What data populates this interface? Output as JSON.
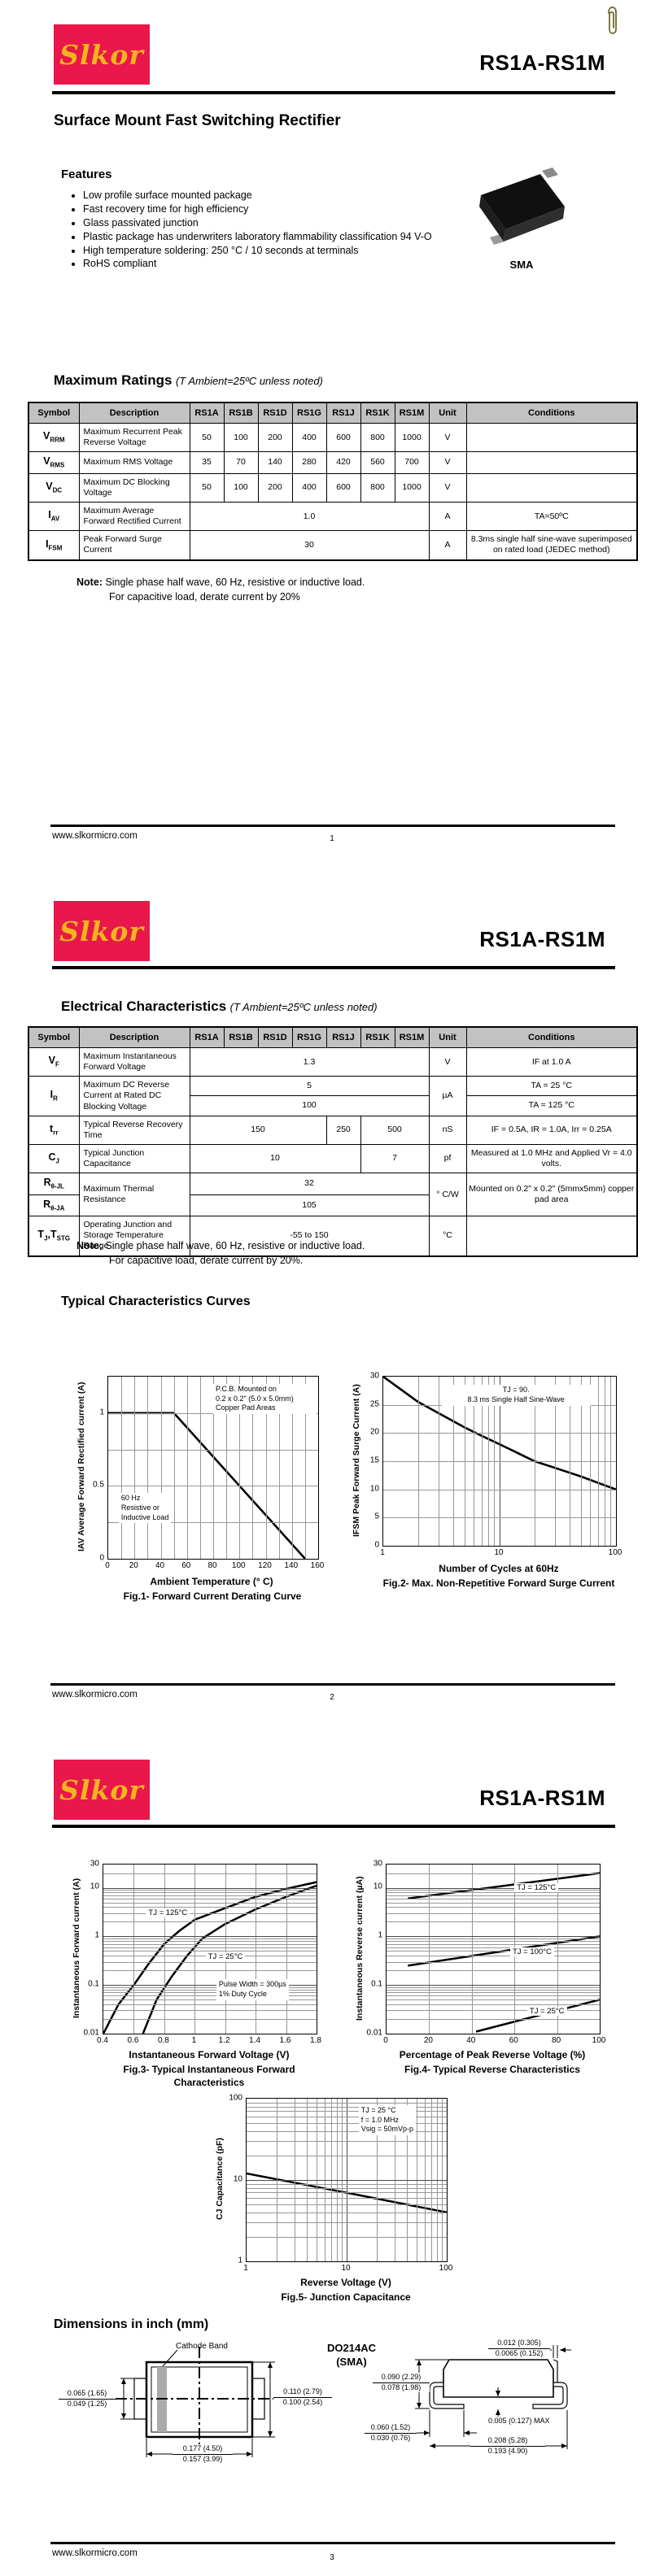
{
  "header": {
    "logo_text": "Slkor",
    "part": "RS1A-RS1M"
  },
  "footer": {
    "site": "www.slkormicro.com",
    "page1": "1",
    "page2": "2",
    "page3": "3"
  },
  "page1": {
    "doc_title": "Surface Mount Fast Switching Rectifier",
    "features_title": "Features",
    "features": [
      "Low profile surface mounted package",
      "Fast recovery time for high efficiency",
      "Glass passivated junction",
      "Plastic package has underwriters laboratory flammability classification 94 V-O",
      "High temperature soldering: 250 °C / 10 seconds at terminals",
      "RoHS compliant"
    ],
    "package_label": "SMA",
    "ratings_title": "Maximum Ratings",
    "ratings_cond": "(T Ambient=25ºC unless noted)",
    "note_label": "Note:",
    "note1": "Single phase half wave, 60 Hz, resistive or inductive load.",
    "note2": "For capacitive load, derate current by 20%",
    "table": {
      "header": [
        "Symbol",
        "Description",
        "RS1A",
        "RS1B",
        "RS1D",
        "RS1G",
        "RS1J",
        "RS1K",
        "RS1M",
        "Unit",
        "Conditions"
      ],
      "rows": [
        [
          {
            "t": "V",
            "sub": "RRM",
            "cls": "sym"
          },
          {
            "t": "Maximum Recurrent Peak Reverse Voltage",
            "cls": "desc"
          },
          {
            "t": "50"
          },
          {
            "t": "100"
          },
          {
            "t": "200"
          },
          {
            "t": "400"
          },
          {
            "t": "600"
          },
          {
            "t": "800"
          },
          {
            "t": "1000"
          },
          {
            "t": "V"
          },
          {
            "t": ""
          }
        ],
        [
          {
            "t": "V",
            "sub": "RMS",
            "cls": "sym"
          },
          {
            "t": "Maximum RMS Voltage",
            "cls": "desc"
          },
          {
            "t": "35"
          },
          {
            "t": "70"
          },
          {
            "t": "140"
          },
          {
            "t": "280"
          },
          {
            "t": "420"
          },
          {
            "t": "560"
          },
          {
            "t": "700"
          },
          {
            "t": "V"
          },
          {
            "t": ""
          }
        ],
        [
          {
            "t": "V",
            "sub": "DC",
            "cls": "sym"
          },
          {
            "t": "Maximum DC Blocking Voltage",
            "cls": "desc"
          },
          {
            "t": "50"
          },
          {
            "t": "100"
          },
          {
            "t": "200"
          },
          {
            "t": "400"
          },
          {
            "t": "600"
          },
          {
            "t": "800"
          },
          {
            "t": "1000"
          },
          {
            "t": "V"
          },
          {
            "t": ""
          }
        ],
        [
          {
            "t": "I",
            "sub": "AV",
            "cls": "sym"
          },
          {
            "t": "Maximum Average Forward Rectified Current",
            "cls": "desc"
          },
          {
            "t": "1.0",
            "c": 7
          },
          {
            "t": "A"
          },
          {
            "t": "TA=50ºC"
          }
        ],
        [
          {
            "t": "I",
            "sub": "FSM",
            "cls": "sym"
          },
          {
            "t": "Peak Forward Surge Current",
            "cls": "desc"
          },
          {
            "t": "30",
            "c": 7
          },
          {
            "t": "A"
          },
          {
            "t": "8.3ms single half sine-wave superimposed on rated load (JEDEC method)"
          }
        ]
      ]
    }
  },
  "page2": {
    "elec_title": "Electrical Characteristics",
    "elec_cond": "(T Ambient=25ºC unless noted)",
    "note_label": "Note:",
    "note1": "Single phase half wave, 60 Hz, resistive or inductive load.",
    "note2": "For capacitive load, derate current by 20%.",
    "curves_title": "Typical Characteristics Curves",
    "table": {
      "header": [
        "Symbol",
        "Description",
        "RS1A",
        "RS1B",
        "RS1D",
        "RS1G",
        "RS1J",
        "RS1K",
        "RS1M",
        "Unit",
        "Conditions"
      ],
      "rows": [
        [
          {
            "t": "V",
            "sub": "F",
            "cls": "sym"
          },
          {
            "t": "Maximum Instantaneous Forward Voltage",
            "cls": "desc"
          },
          {
            "t": "1.3",
            "c": 7
          },
          {
            "t": "V"
          },
          {
            "t": "IF at 1.0 A"
          }
        ],
        [
          {
            "t": "I",
            "sub": "R",
            "cls": "sym",
            "r": 2
          },
          {
            "t": "Maximum DC Reverse Current at Rated DC Blocking Voltage",
            "cls": "desc",
            "r": 2
          },
          {
            "t": "5",
            "c": 7
          },
          {
            "t": "µA",
            "r": 2
          },
          {
            "t": "TA = 25 °C"
          }
        ],
        [
          {
            "t": "100",
            "c": 7
          },
          {
            "t": "TA = 125 °C"
          }
        ],
        [
          {
            "t": "t",
            "sub": "rr",
            "cls": "sym"
          },
          {
            "t": "Typical Reverse Recovery Time",
            "cls": "desc"
          },
          {
            "t": "150",
            "c": 4
          },
          {
            "t": "250"
          },
          {
            "t": "500",
            "c": 2
          },
          {
            "t": "nS"
          },
          {
            "t": "IF = 0.5A, IR = 1.0A, Irr = 0.25A"
          }
        ],
        [
          {
            "t": "C",
            "sub": "J",
            "cls": "sym"
          },
          {
            "t": "Typical Junction Capacitance",
            "cls": "desc"
          },
          {
            "t": "10",
            "c": 5
          },
          {
            "t": "7",
            "c": 2
          },
          {
            "t": "pf"
          },
          {
            "t": "Measured at 1.0 MHz and Applied Vr = 4.0 volts."
          }
        ],
        [
          {
            "parts": [
              {
                "t": "R"
              },
              {
                "s": "θ-JL"
              }
            ],
            "cls": "sym"
          },
          {
            "t": "Maximum Thermal Resistance",
            "cls": "desc",
            "r": 2
          },
          {
            "t": "32",
            "c": 7
          },
          {
            "t": "° C/W",
            "r": 2
          },
          {
            "t": "Mounted on 0.2\" x 0.2\" (5mmx5mm) copper pad area",
            "r": 2
          }
        ],
        [
          {
            "parts": [
              {
                "t": "R"
              },
              {
                "s": "θ-JA"
              }
            ],
            "cls": "sym"
          },
          {
            "t": "105",
            "c": 7
          }
        ],
        [
          {
            "parts": [
              {
                "t": "T"
              },
              {
                "s": "J"
              },
              {
                "t": ",T"
              },
              {
                "s": "STG"
              }
            ],
            "cls": "sym"
          },
          {
            "t": "Operating Junction and Storage Temperature Range",
            "cls": "desc"
          },
          {
            "t": "-55 to 150",
            "c": 7
          },
          {
            "t": "°C"
          },
          {
            "t": ""
          }
        ]
      ]
    },
    "fig1": {
      "ylabel": "IAV Average Forward Rectified current (A)",
      "xlabel": "Ambient Temperature (° C)",
      "caption": "Fig.1- Forward Current Derating Curve",
      "ann_pcb": [
        "P.C.B. Mounted on",
        "0.2 x 0.2\" (5.0 x 5.0mm)",
        "Copper Pad Areas"
      ],
      "ann_load": [
        "60 Hz",
        "Resistive or",
        "Inductive Load"
      ],
      "xticks": [
        {
          "v": "0",
          "p": 0
        },
        {
          "v": "20",
          "p": 12.5
        },
        {
          "v": "40",
          "p": 25
        },
        {
          "v": "60",
          "p": 37.5
        },
        {
          "v": "80",
          "p": 50
        },
        {
          "v": "100",
          "p": 62.5
        },
        {
          "v": "120",
          "p": 75
        },
        {
          "v": "140",
          "p": 87.5
        },
        {
          "v": "160",
          "p": 100
        }
      ],
      "yticks": [
        {
          "v": "1",
          "p": 20
        },
        {
          "v": "0.5",
          "p": 60
        },
        {
          "v": "0",
          "p": 100
        }
      ]
    },
    "fig2": {
      "ylabel": "IFSM Peak Forward Surge Current (A)",
      "xlabel": "Number of Cycles at 60Hz",
      "caption": "Fig.2- Max. Non-Repetitive Forward Surge Current",
      "ann": [
        "TJ = 90.",
        "8.3 ms Single Half Sine-Wave"
      ],
      "xticks": [
        {
          "v": "1",
          "p": 0
        },
        {
          "v": "10",
          "p": 50
        },
        {
          "v": "100",
          "p": 100
        }
      ],
      "yticks": [
        {
          "v": "30",
          "p": 0
        },
        {
          "v": "25",
          "p": 16.7
        },
        {
          "v": "20",
          "p": 33.3
        },
        {
          "v": "15",
          "p": 50
        },
        {
          "v": "10",
          "p": 66.7
        },
        {
          "v": "5",
          "p": 83.3
        },
        {
          "v": "0",
          "p": 100
        }
      ]
    }
  },
  "page3": {
    "fig3": {
      "ylabel": "Instantaneous Forward current (A)",
      "xlabel": "Instantaneous Forward Voltage (V)",
      "caption1": "Fig.3- Typical Instantaneous Forward",
      "caption2": "Characteristics",
      "label_125": "TJ = 125°C",
      "label_25": "TJ = 25°C",
      "ann": [
        "Pulse Width = 300µs",
        "1% Duty Cycle"
      ],
      "xticks": [
        {
          "v": "0.4",
          "p": 0
        },
        {
          "v": "0.6",
          "p": 14.3
        },
        {
          "v": "0.8",
          "p": 28.6
        },
        {
          "v": "1",
          "p": 42.9
        },
        {
          "v": "1.2",
          "p": 57.1
        },
        {
          "v": "1.4",
          "p": 71.4
        },
        {
          "v": "1.6",
          "p": 85.7
        },
        {
          "v": "1.8",
          "p": 100
        }
      ],
      "yticks": [
        {
          "v": "30",
          "p": 0
        },
        {
          "v": "10",
          "p": 13.7
        },
        {
          "v": "1",
          "p": 42.5
        },
        {
          "v": "0.1",
          "p": 71.2
        },
        {
          "v": "0.01",
          "p": 100
        }
      ]
    },
    "fig4": {
      "ylabel": "Instantaneous Reverse current (µA)",
      "xlabel": "Percentage of Peak Reverse Voltage (%)",
      "caption": "Fig.4- Typical Reverse Characteristics",
      "label_125": "TJ = 125°C",
      "label_100": "TJ = 100°C",
      "label_25": "TJ = 25°C",
      "xticks": [
        {
          "v": "0",
          "p": 0
        },
        {
          "v": "20",
          "p": 20
        },
        {
          "v": "40",
          "p": 40
        },
        {
          "v": "60",
          "p": 60
        },
        {
          "v": "80",
          "p": 80
        },
        {
          "v": "100",
          "p": 100
        }
      ],
      "yticks": [
        {
          "v": "30",
          "p": 0
        },
        {
          "v": "10",
          "p": 13.7
        },
        {
          "v": "1",
          "p": 42.5
        },
        {
          "v": "0.1",
          "p": 71.2
        },
        {
          "v": "0.01",
          "p": 100
        }
      ]
    },
    "fig5": {
      "ylabel": "CJ Capacitance (pF)",
      "xlabel": "Reverse Voltage (V)",
      "caption": "Fig.5- Junction Capacitance",
      "ann": [
        "TJ = 25 °C",
        "f = 1.0 MHz",
        "Vsig = 50mVp-p"
      ],
      "xticks": [
        {
          "v": "1",
          "p": 0
        },
        {
          "v": "10",
          "p": 50
        },
        {
          "v": "100",
          "p": 100
        }
      ],
      "yticks": [
        {
          "v": "100",
          "p": 0
        },
        {
          "v": "10",
          "p": 50
        },
        {
          "v": "1",
          "p": 100
        }
      ]
    },
    "dims": {
      "heading": "Dimensions in inch (mm)",
      "cathode_band": "Cathode Band",
      "package_name_1": "DO214AC",
      "package_name_2": "(SMA)",
      "tv_left": [
        "0.065 (1.65)",
        "0.049 (1.25)"
      ],
      "tv_right": [
        "0.110 (2.79)",
        "0.100 (2.54)"
      ],
      "tv_bottom": [
        "0.177 (4.50)",
        "0.157 (3.99)"
      ],
      "sv_top": [
        "0.012 (0.305)",
        "0.0065 (0.152)"
      ],
      "sv_left": [
        "0.090 (2.29)",
        "0.078 (1.98)"
      ],
      "sv_lead": [
        "0.060 (1.52)",
        "0.030 (0.76)"
      ],
      "sv_standoff": "0.005 (0.127) MAX",
      "sv_bottom": [
        "0.208 (5.28)",
        "0.193 (4.90)"
      ]
    }
  },
  "chart_data": [
    {
      "id": "fig1",
      "type": "line",
      "title": "Fig.1- Forward Current Derating Curve",
      "xlabel": "Ambient Temperature (° C)",
      "ylabel": "IAV Average Forward Rectified current (A)",
      "xlim": [
        0,
        160
      ],
      "ylim": [
        0,
        1.25
      ],
      "xticks": [
        0,
        20,
        40,
        60,
        80,
        100,
        120,
        140,
        160
      ],
      "yticks": [
        0,
        0.5,
        1
      ],
      "grid": true,
      "annotations": [
        "P.C.B. Mounted on 0.2 x 0.2\" (5.0 x 5.0mm) Copper Pad Areas",
        "60 Hz Resistive or Inductive Load"
      ],
      "series": [
        {
          "name": "IAV derating",
          "x": [
            0,
            50,
            150
          ],
          "y": [
            1.0,
            1.0,
            0.0
          ]
        }
      ]
    },
    {
      "id": "fig2",
      "type": "line",
      "x_scale": "log",
      "title": "Fig.2- Max. Non-Repetitive Forward Surge Current",
      "xlabel": "Number of Cycles at 60Hz",
      "ylabel": "IFSM Peak Forward Surge Current (A)",
      "xlim": [
        1,
        100
      ],
      "ylim": [
        0,
        30
      ],
      "grid": true,
      "annotations": [
        "TJ = 90.",
        "8.3 ms Single Half Sine-Wave"
      ],
      "series": [
        {
          "name": "surge",
          "x": [
            1,
            2,
            3,
            5,
            10,
            20,
            50,
            100
          ],
          "y": [
            30,
            25.5,
            23.5,
            21,
            18,
            15,
            12,
            10
          ]
        }
      ]
    },
    {
      "id": "fig3",
      "type": "line",
      "y_scale": "log",
      "title": "Fig.3- Typical Instantaneous Forward Characteristics",
      "xlabel": "Instantaneous Forward Voltage (V)",
      "ylabel": "Instantaneous Forward current (A)",
      "xlim": [
        0.4,
        1.8
      ],
      "ylim": [
        0.01,
        30
      ],
      "grid": true,
      "annotations": [
        "Pulse Width = 300µs",
        "1% Duty Cycle"
      ],
      "series": [
        {
          "name": "TJ = 125°C",
          "x": [
            0.4,
            0.6,
            0.8,
            1.0,
            1.2,
            1.4,
            1.6,
            1.8
          ],
          "y": [
            0.01,
            0.1,
            0.7,
            2.2,
            3.8,
            6.5,
            9.5,
            13
          ]
        },
        {
          "name": "TJ = 25°C",
          "x": [
            0.66,
            0.85,
            1.0,
            1.2,
            1.4,
            1.6,
            1.8
          ],
          "y": [
            0.01,
            0.15,
            0.6,
            1.8,
            3.6,
            6.5,
            11
          ]
        }
      ]
    },
    {
      "id": "fig4",
      "type": "line",
      "y_scale": "log",
      "title": "Fig.4- Typical Reverse Characteristics",
      "xlabel": "Percentage of Peak Reverse Voltage (%)",
      "ylabel": "Instantaneous Reverse current (µA)",
      "xlim": [
        0,
        100
      ],
      "ylim": [
        0.01,
        30
      ],
      "grid": true,
      "series": [
        {
          "name": "TJ = 125°C",
          "x": [
            10,
            100
          ],
          "y": [
            6,
            20
          ]
        },
        {
          "name": "TJ = 100°C",
          "x": [
            10,
            100
          ],
          "y": [
            0.25,
            1.0
          ]
        },
        {
          "name": "TJ = 25°C",
          "x": [
            42,
            100
          ],
          "y": [
            0.011,
            0.05
          ]
        }
      ]
    },
    {
      "id": "fig5",
      "type": "line",
      "x_scale": "log",
      "y_scale": "log",
      "title": "Fig.5- Junction Capacitance",
      "xlabel": "Reverse Voltage (V)",
      "ylabel": "CJ Capacitance (pF)",
      "xlim": [
        1,
        100
      ],
      "ylim": [
        1,
        100
      ],
      "grid": true,
      "annotations": [
        "TJ = 25 °C",
        "f = 1.0 MHz",
        "Vsig = 50mVp-p"
      ],
      "series": [
        {
          "name": "CJ",
          "x": [
            1,
            10,
            100
          ],
          "y": [
            12,
            7,
            4
          ]
        }
      ]
    }
  ]
}
